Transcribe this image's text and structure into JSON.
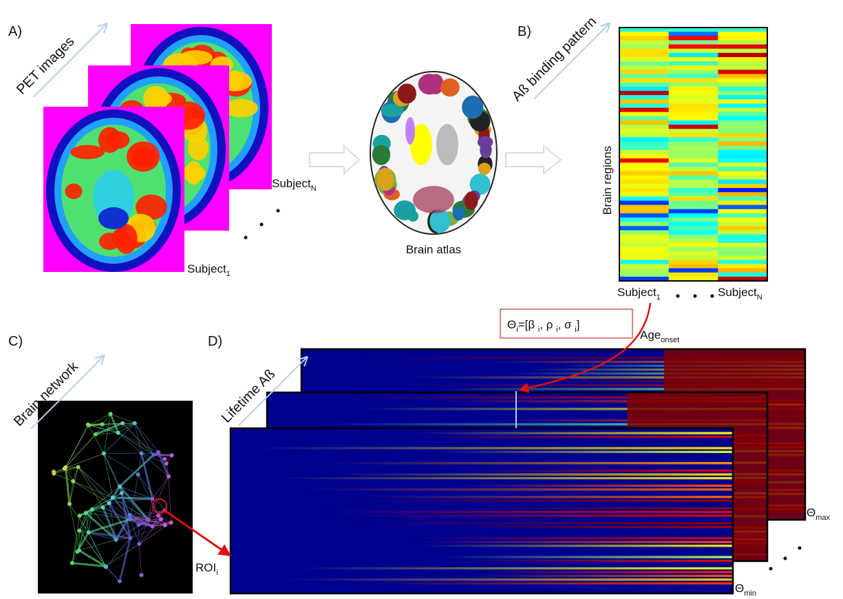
{
  "panels": {
    "a": {
      "label": "A)",
      "arrow_text": "PET images",
      "subject_last": {
        "text": "Subject",
        "sub": "N"
      },
      "subject_first": {
        "text": "Subject",
        "sub": "1"
      },
      "atlas_caption": "Brain atlas"
    },
    "b": {
      "label": "B)",
      "arrow_text": "Aß binding pattern",
      "y_axis": "Brain regions",
      "subject_first": {
        "text": "Subject",
        "sub": "1"
      },
      "subject_last": {
        "text": "Subject",
        "sub": "N"
      }
    },
    "c": {
      "label": "C)",
      "arrow_text": "Brain network",
      "roi": {
        "text": "ROI",
        "sub": "i"
      }
    },
    "d": {
      "label": "D)",
      "arrow_text": "Lifetime Aß",
      "params": [
        "Θ",
        "i",
        "=[β ",
        "i",
        ", ρ ",
        "i",
        ", σ ",
        "i",
        "]"
      ],
      "age": {
        "text": "Age",
        "sub": "onset"
      },
      "theta_max": {
        "text": "Θ",
        "sub": "max"
      },
      "theta_min": {
        "text": "Θ",
        "sub": "min"
      }
    }
  }
}
